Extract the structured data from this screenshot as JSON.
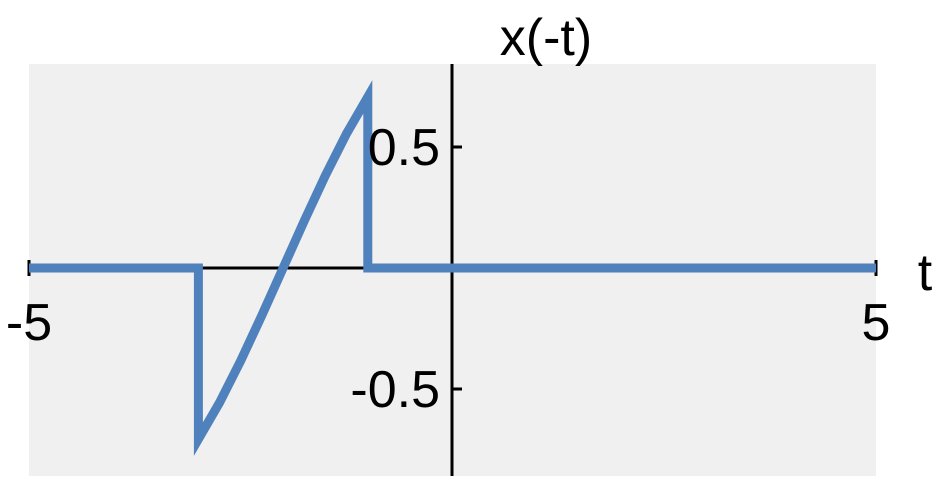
{
  "chart_data": {
    "type": "line",
    "title": "x(-t)",
    "xlabel": "t",
    "ylabel": "",
    "xlim": [
      -5,
      5
    ],
    "ylim": [
      -0.85,
      0.85
    ],
    "x_ticks": [
      {
        "value": -5,
        "label": "-5"
      },
      {
        "value": 5,
        "label": "5"
      }
    ],
    "y_ticks": [
      {
        "value": 0.5,
        "label": "0.5"
      },
      {
        "value": -0.5,
        "label": "-0.5"
      }
    ],
    "grid": false,
    "background": "#f0f0f0",
    "line_color": "#4f81bd",
    "series": [
      {
        "x": [
          -5,
          -3,
          -3,
          -2.75,
          -2.5,
          -2.25,
          -2,
          -1.75,
          -1.5,
          -1.25,
          -1,
          -1,
          5
        ],
        "y": [
          0,
          0,
          -0.707,
          -0.556,
          -0.383,
          -0.195,
          0,
          0.195,
          0.383,
          0.556,
          0.707,
          0,
          0
        ]
      }
    ]
  }
}
